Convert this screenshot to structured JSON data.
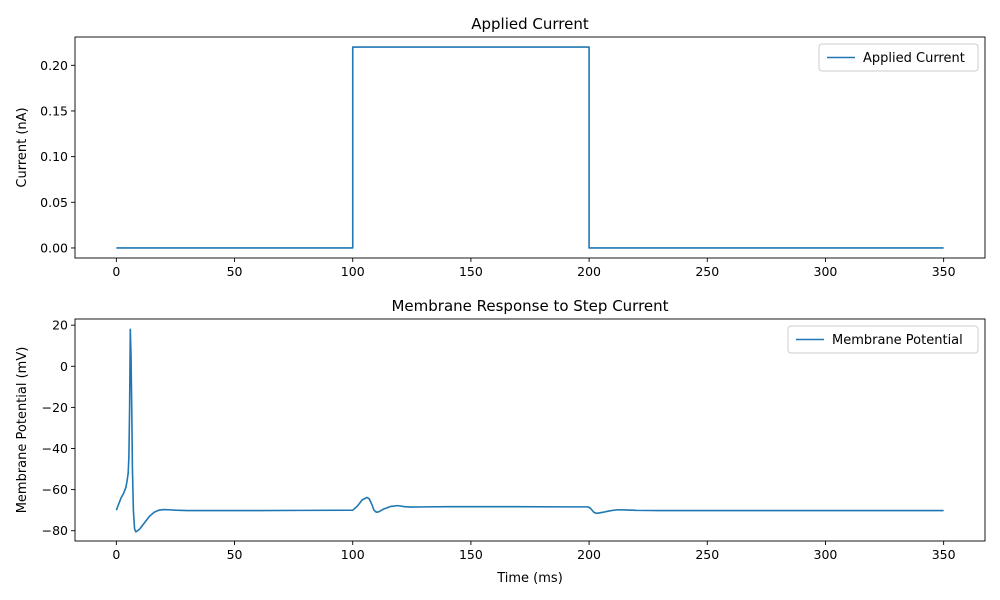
{
  "chart_data": [
    {
      "type": "line",
      "title": "Applied Current",
      "xlabel": "",
      "ylabel": "Current (nA)",
      "xlim": [
        -17.5,
        367.5
      ],
      "ylim": [
        -0.011,
        0.231
      ],
      "xticks": [
        0,
        50,
        100,
        150,
        200,
        250,
        300,
        350
      ],
      "yticks": [
        0.0,
        0.05,
        0.1,
        0.15,
        0.2,
        0.25
      ],
      "ytick_labels": [
        "0.00",
        "0.05",
        "0.10",
        "0.15",
        "0.20"
      ],
      "grid": false,
      "legend_position": "upper right",
      "color": "#1f77b4",
      "series": [
        {
          "name": "Applied Current",
          "x": [
            0,
            100,
            100,
            200,
            200,
            350
          ],
          "y": [
            0,
            0,
            0.22,
            0.22,
            0,
            0
          ]
        }
      ]
    },
    {
      "type": "line",
      "title": "Membrane Response to Step Current",
      "xlabel": "Time (ms)",
      "ylabel": "Membrane Potential (mV)",
      "xlim": [
        -17.5,
        367.5
      ],
      "ylim": [
        -85,
        23
      ],
      "xticks": [
        0,
        50,
        100,
        150,
        200,
        250,
        300,
        350
      ],
      "yticks": [
        -80,
        -60,
        -40,
        -20,
        0,
        20
      ],
      "ytick_labels": [
        "−80",
        "−60",
        "−40",
        "−20",
        "0",
        "20"
      ],
      "grid": false,
      "legend_position": "upper right",
      "color": "#1f77b4",
      "series": [
        {
          "name": "Membrane Potential",
          "x": [
            0,
            1,
            2,
            3,
            4,
            4.5,
            5,
            5.3,
            5.6,
            5.9,
            6.2,
            6.5,
            6.8,
            7.2,
            7.7,
            8.2,
            9,
            10,
            12,
            14,
            16,
            18,
            20,
            22,
            25,
            30,
            35,
            40,
            60,
            80,
            100,
            102,
            104,
            106,
            107,
            108,
            109,
            110,
            111,
            113,
            116,
            119,
            122,
            125,
            130,
            140,
            150,
            170,
            190,
            199.5,
            200.5,
            202,
            203,
            204,
            206,
            208,
            210,
            212,
            215,
            220,
            230,
            250,
            300,
            350
          ],
          "y": [
            -70,
            -67,
            -64,
            -62,
            -59,
            -56,
            -52,
            -44,
            -20,
            18,
            5,
            -20,
            -50,
            -70,
            -79,
            -80.5,
            -80,
            -79,
            -76,
            -73,
            -71,
            -70,
            -69.7,
            -69.8,
            -70,
            -70.2,
            -70.2,
            -70.2,
            -70.2,
            -70.1,
            -70,
            -68,
            -65,
            -63.8,
            -64.5,
            -67,
            -70,
            -71,
            -70.8,
            -69.5,
            -68.2,
            -67.8,
            -68.3,
            -68.5,
            -68.4,
            -68.3,
            -68.3,
            -68.3,
            -68.4,
            -68.4,
            -69,
            -71,
            -71.5,
            -71.4,
            -71,
            -70.5,
            -70.1,
            -69.8,
            -69.9,
            -70.1,
            -70.2,
            -70.2,
            -70.2,
            -70.2
          ]
        }
      ]
    }
  ]
}
